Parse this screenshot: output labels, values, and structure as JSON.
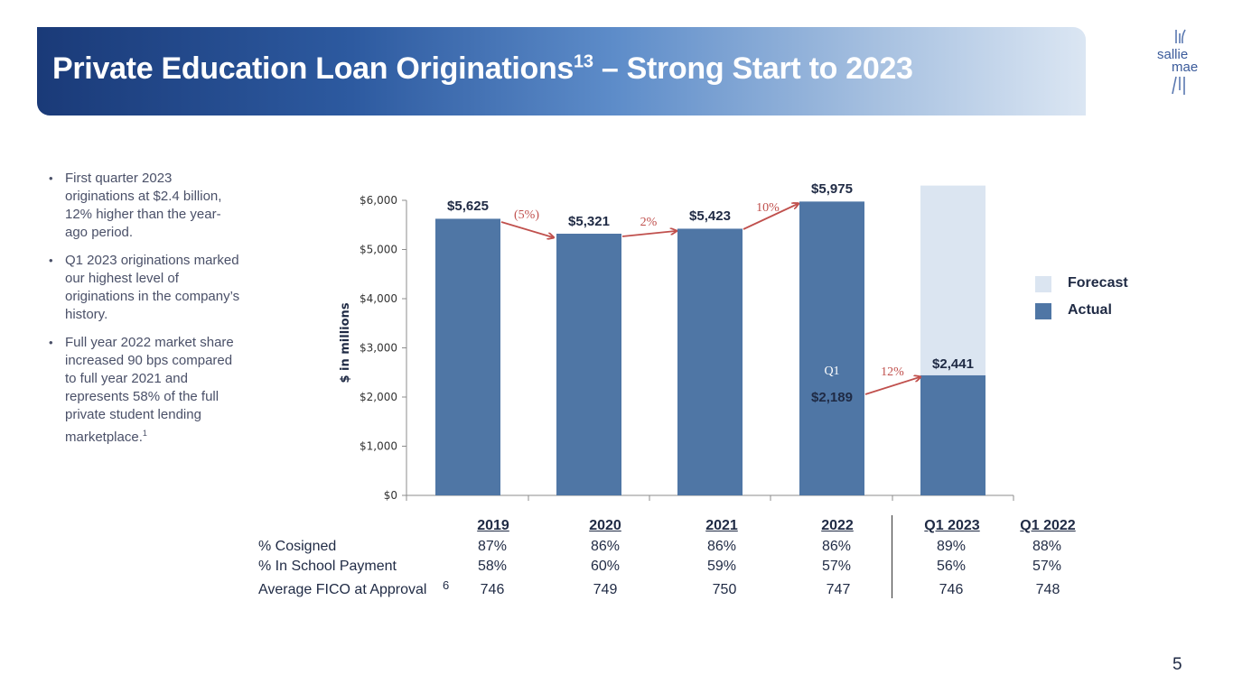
{
  "title": {
    "main": "Private Education Loan Originations",
    "superscript": "13",
    "suffix": " – Strong Start to 2023"
  },
  "logo": {
    "line1": "sallie",
    "line2": "mae"
  },
  "bullets": [
    "First quarter 2023 originations at $2.4 billion, 12% higher than the year-ago period.",
    "Q1 2023 originations marked our highest level of originations in the company’s history.",
    "Full year 2022 market share increased 90 bps compared to full year 2021 and represents 58% of the full private student lending marketplace."
  ],
  "bullet3_footnote": "1",
  "legend": {
    "forecast": "Forecast",
    "actual": "Actual",
    "forecast_color": "#dbe5f1",
    "actual_color": "#4f76a5"
  },
  "chart_data": {
    "type": "bar",
    "ylabel": "$ in millions",
    "ylim": [
      0,
      6000
    ],
    "yticks": [
      "$0",
      "$1,000",
      "$2,000",
      "$3,000",
      "$4,000",
      "$5,000",
      "$6,000"
    ],
    "categories": [
      "2019",
      "2020",
      "2021",
      "2022",
      "Q1 2023"
    ],
    "series": [
      {
        "name": "Actual",
        "values": [
          5625,
          5321,
          5423,
          5975,
          2441
        ]
      },
      {
        "name": "Forecast",
        "values": [
          null,
          null,
          null,
          null,
          6300
        ]
      }
    ],
    "data_labels": [
      "$5,625",
      "$5,321",
      "$5,423",
      "$5,975",
      "$2,441"
    ],
    "inner_label": {
      "label": "Q1",
      "value_label": "$2,189",
      "value": 2189
    },
    "growth_labels": [
      "(5%)",
      "2%",
      "10%",
      "12%"
    ],
    "colors": {
      "actual": "#4f76a5",
      "forecast": "#dbe5f1",
      "arrow": "#c0504d"
    }
  },
  "table": {
    "headers": [
      "2019",
      "2020",
      "2021",
      "2022",
      "Q1 2023",
      "Q1 2022"
    ],
    "rows": [
      {
        "label": "% Cosigned",
        "values": [
          "87%",
          "86%",
          "86%",
          "86%",
          "89%",
          "88%"
        ]
      },
      {
        "label": "% In School Payment",
        "values": [
          "58%",
          "60%",
          "59%",
          "57%",
          "56%",
          "57%"
        ]
      },
      {
        "label": "Average FICO at Approval",
        "values": [
          "746",
          "749",
          "750",
          "747",
          "746",
          "748"
        ]
      }
    ],
    "footnote": "6"
  },
  "page_number": "5"
}
